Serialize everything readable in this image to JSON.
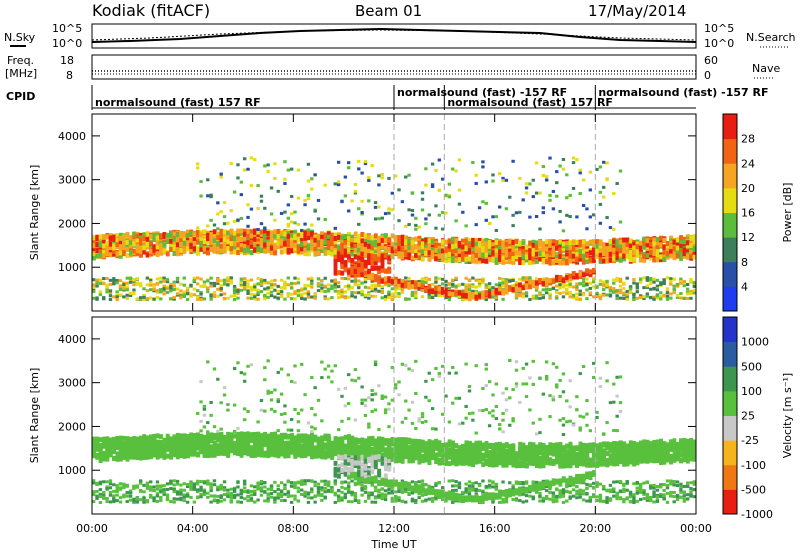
{
  "header": {
    "station": "Kodiak (fitACF)",
    "beam": "Beam 01",
    "date": "17/May/2014"
  },
  "strips": {
    "nsky_label": "N.Sky",
    "nsky_ticks": [
      "10^5",
      "10^0"
    ],
    "nsearch_label": "N.Search",
    "nsearch_ticks": [
      "10^5",
      "10^0"
    ],
    "freq_label_1": "Freq.",
    "freq_label_2": "[MHz]",
    "freq_ticks": [
      "18",
      "8"
    ],
    "nave_label": "Nave",
    "nave_ticks": [
      "60",
      "0"
    ],
    "cpid_label": "CPID",
    "cpid_segments": [
      {
        "text": "normalsound (fast) 157 RF",
        "start_hour": 0
      },
      {
        "text": "normalsound (fast) -157 RF",
        "start_hour": 12
      },
      {
        "text": "normalsound (fast) 157 RF",
        "start_hour": 14
      },
      {
        "text": "normalsound (fast) -157 RF",
        "start_hour": 20
      }
    ]
  },
  "chart_data": [
    {
      "type": "heatmap",
      "panel": "power",
      "xlabel": "",
      "ylabel": "Slant Range [km]",
      "yticks": [
        "1000",
        "2000",
        "3000",
        "4000"
      ],
      "ylim": [
        0,
        4500
      ],
      "colorbar_label": "Power [dB]",
      "colorbar_ticks": [
        "4",
        "8",
        "12",
        "16",
        "20",
        "24",
        "28"
      ],
      "colors": [
        "#1f3cf0",
        "#2a4fa8",
        "#3c7f5a",
        "#5cbc3c",
        "#e6dc14",
        "#f5a522",
        "#f06414",
        "#e81e12"
      ],
      "regions": [
        {
          "desc": "main band",
          "x": [
            0,
            24
          ],
          "y_center": [
            1400,
            1600
          ],
          "value": 20
        },
        {
          "desc": "upper band",
          "x": [
            5,
            21
          ],
          "y_center": [
            2000,
            2200
          ],
          "value": 14
        },
        {
          "desc": "near field",
          "x": [
            0,
            24
          ],
          "y_center": [
            300,
            500
          ],
          "value": 10
        },
        {
          "desc": "strong patch",
          "x": [
            9.5,
            11.5
          ],
          "y_center": [
            900,
            1200
          ],
          "value": 28
        }
      ]
    },
    {
      "type": "heatmap",
      "panel": "velocity",
      "xlabel": "Time UT",
      "ylabel": "Slant Range [km]",
      "yticks": [
        "1000",
        "2000",
        "3000",
        "4000"
      ],
      "ylim": [
        0,
        4500
      ],
      "xticks": [
        "00:00",
        "04:00",
        "08:00",
        "12:00",
        "16:00",
        "20:00",
        "00:00"
      ],
      "colorbar_label": "Velocity [m s⁻¹]",
      "colorbar_ticks": [
        "1000",
        "500",
        "100",
        "25",
        "-25",
        "-100",
        "-500",
        "-1000"
      ],
      "colors": [
        "#2434c8",
        "#2c5ca0",
        "#3c9650",
        "#58c03c",
        "#c8c8c8",
        "#f5b41e",
        "#f07814",
        "#e81e12"
      ],
      "regions": [
        {
          "desc": "ground scatter band",
          "x": [
            0,
            24
          ],
          "y_center": [
            1300,
            1600
          ],
          "value": 0
        },
        {
          "desc": "flow patch",
          "x": [
            9.5,
            11.5
          ],
          "y_center": [
            900,
            1200
          ],
          "value": -100
        }
      ]
    }
  ]
}
